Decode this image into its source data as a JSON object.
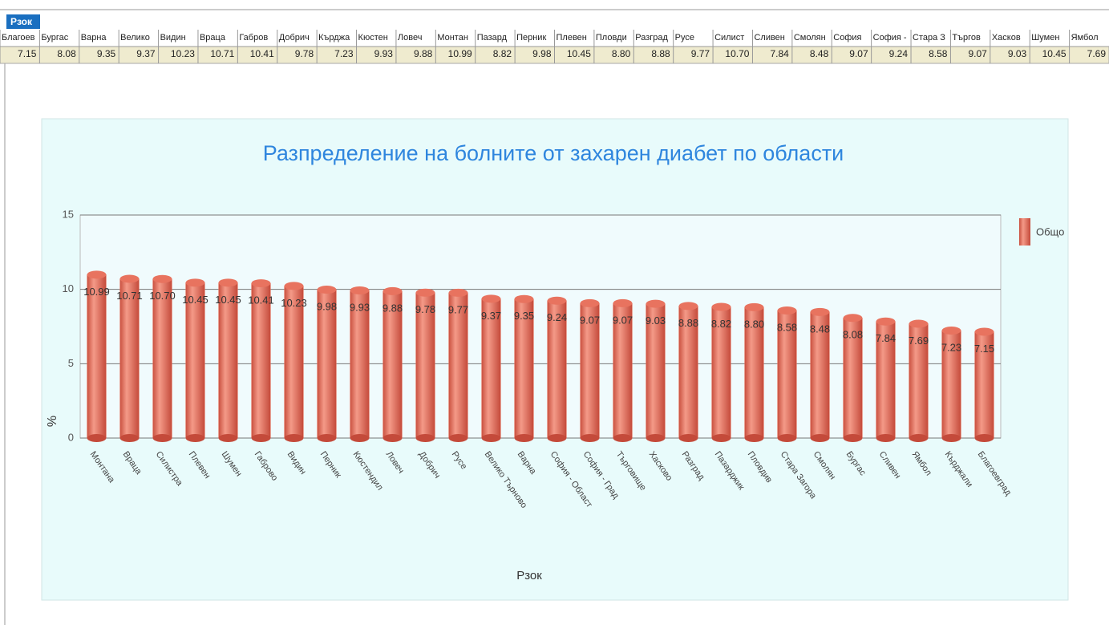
{
  "tab": "Рзок",
  "table": {
    "headers": [
      "Благоев",
      "Бургас",
      "Варна",
      "Велико",
      "Видин",
      "Враца",
      "Габров",
      "Добрич",
      "Кърджа",
      "Кюстен",
      "Ловеч",
      "Монтан",
      "Пазард",
      "Перник",
      "Плевен",
      "Пловди",
      "Разград",
      "Русе",
      "Силист",
      "Сливен",
      "Смолян",
      "София",
      "София -",
      "Стара З",
      "Търгов",
      "Хасков",
      "Шумен",
      "Ямбол"
    ],
    "values": [
      "7.15",
      "8.08",
      "9.35",
      "9.37",
      "10.23",
      "10.71",
      "10.41",
      "9.78",
      "7.23",
      "9.93",
      "9.88",
      "10.99",
      "8.82",
      "9.98",
      "10.45",
      "8.80",
      "8.88",
      "9.77",
      "10.70",
      "7.84",
      "8.48",
      "9.07",
      "9.24",
      "8.58",
      "9.07",
      "9.03",
      "10.45",
      "7.69"
    ]
  },
  "chart_data": {
    "type": "bar",
    "title": "Разпределение на болните от захарен диабет по области",
    "x_label": "Рзок",
    "y_label": "%",
    "categories": [
      "Монтана",
      "Враца",
      "Силистра",
      "Плевен",
      "Шумен",
      "Габрово",
      "Видин",
      "Перник",
      "Кюстендил",
      "Ловеч",
      "Добрич",
      "Русе",
      "Велико Търново",
      "Варна",
      "София - Област",
      "София - Град",
      "Търговище",
      "Хасково",
      "Разград",
      "Пазарджик",
      "Пловдив",
      "Стара Загора",
      "Смолян",
      "Бургас",
      "Сливен",
      "Ямбол",
      "Кърджали",
      "Благоевград"
    ],
    "series": [
      {
        "name": "Общо",
        "color": "#e8735f",
        "values": [
          10.99,
          10.71,
          10.7,
          10.45,
          10.45,
          10.41,
          10.23,
          9.98,
          9.93,
          9.88,
          9.78,
          9.77,
          9.37,
          9.35,
          9.24,
          9.07,
          9.07,
          9.03,
          8.88,
          8.82,
          8.8,
          8.58,
          8.48,
          8.08,
          7.84,
          7.69,
          7.23,
          7.15
        ],
        "value_labels": [
          "10.99",
          "10.71",
          "10.70",
          "10.45",
          "10.45",
          "10.41",
          "10.23",
          "9.98",
          "9.93",
          "9.88",
          "9.78",
          "9.77",
          "9.37",
          "9.35",
          "9.24",
          "9.07",
          "9.07",
          "9.03",
          "8.88",
          "8.82",
          "8.80",
          "8.58",
          "8.48",
          "8.08",
          "7.84",
          "7.69",
          "7.23",
          "7.15"
        ]
      }
    ],
    "ylim": [
      0,
      15
    ],
    "yticks": [
      0,
      5,
      10,
      15
    ],
    "grid": true,
    "legend": "right"
  }
}
